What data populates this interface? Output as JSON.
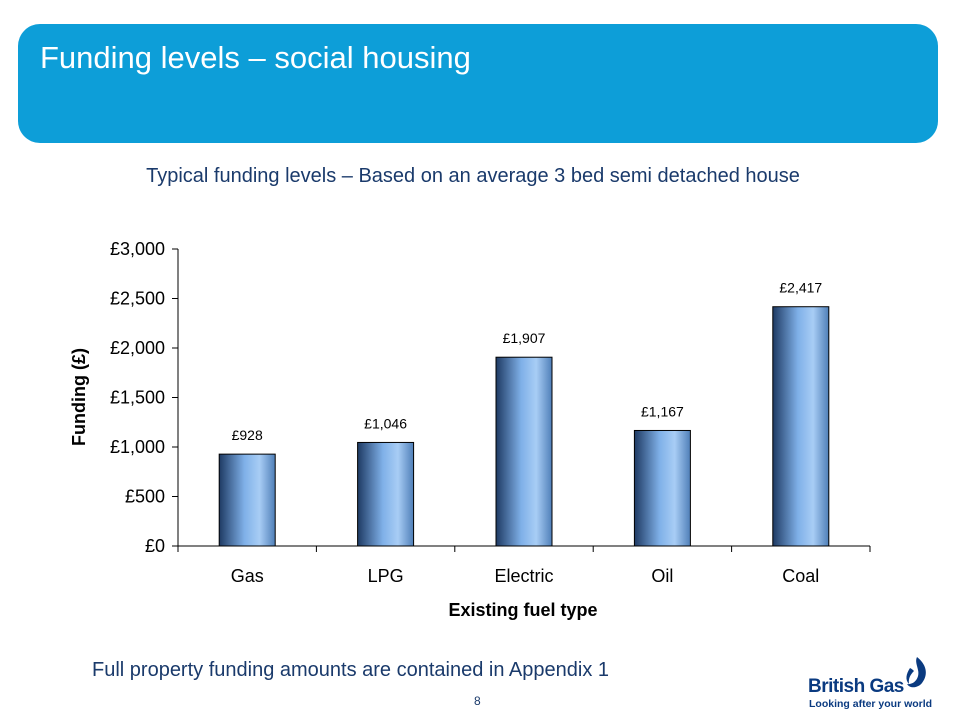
{
  "slide": {
    "title": "Funding levels – social housing",
    "subtitle": "Typical funding levels – Based on an average 3 bed semi detached house",
    "footer_note": "Full property funding amounts are contained in Appendix 1",
    "page_number": "8"
  },
  "brand": {
    "name": "British Gas",
    "tagline": "Looking after your world",
    "icon": "flame-icon",
    "color": "#0a3a80"
  },
  "colors": {
    "banner": "#0d9ed8",
    "bar_gradient": [
      "#1e3a63",
      "#7fb0e8",
      "#a8cdf5",
      "#4f7fb8"
    ]
  },
  "chart_data": {
    "type": "bar",
    "categories": [
      "Gas",
      "LPG",
      "Electric",
      "Oil",
      "Coal"
    ],
    "values": [
      928,
      1046,
      1907,
      1167,
      2417
    ],
    "data_labels": [
      "£928",
      "£1,046",
      "£1,907",
      "£1,167",
      "£2,417"
    ],
    "xlabel": "Existing fuel type",
    "ylabel": "Funding (£)",
    "ylim": [
      0,
      3000
    ],
    "yticks": [
      0,
      500,
      1000,
      1500,
      2000,
      2500,
      3000
    ],
    "ytick_labels": [
      "£0",
      "£500",
      "£1,000",
      "£1,500",
      "£2,000",
      "£2,500",
      "£3,000"
    ],
    "grid": false,
    "legend": false
  }
}
